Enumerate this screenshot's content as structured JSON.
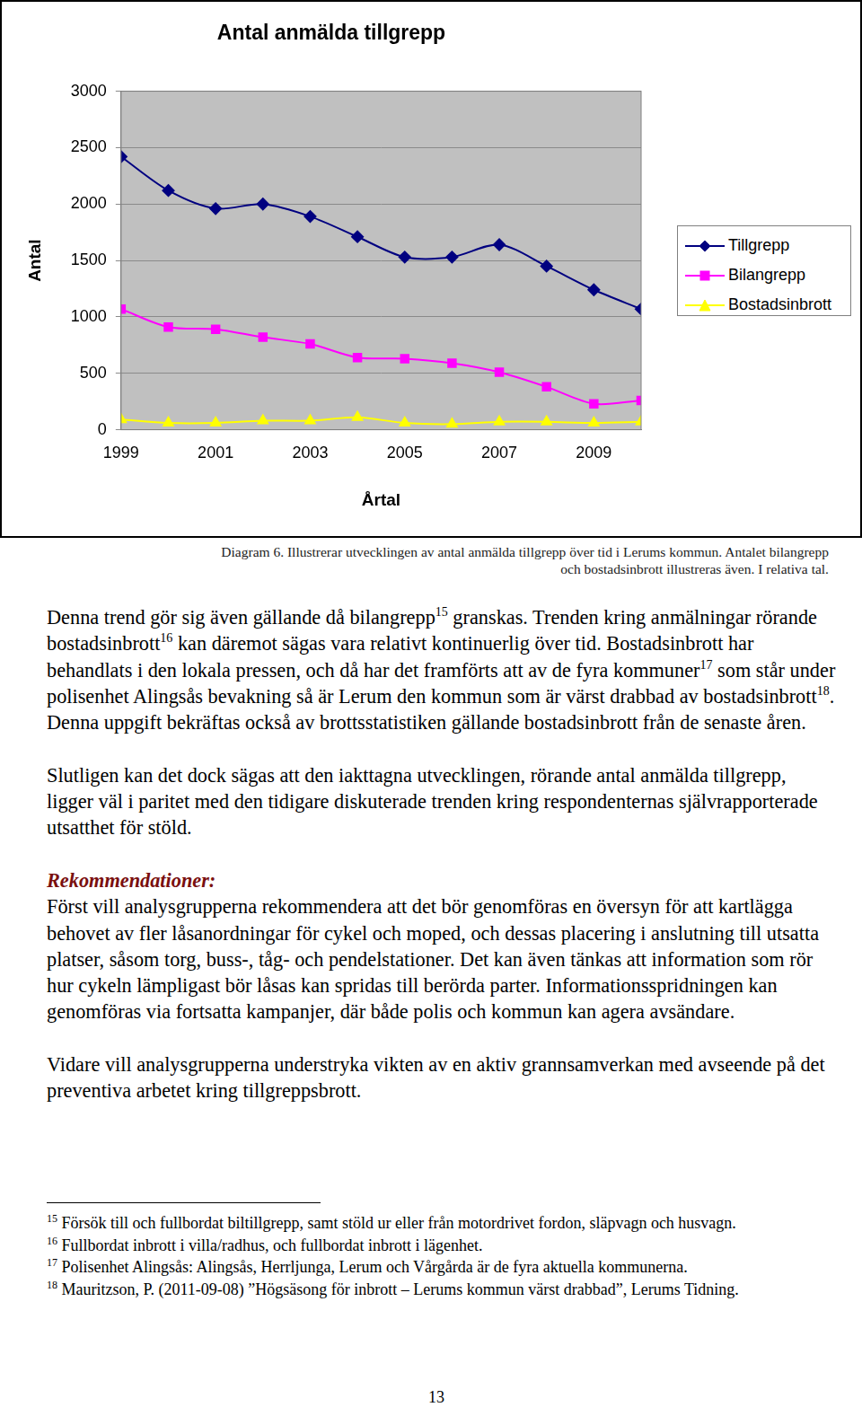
{
  "chart_data": {
    "type": "line",
    "title": "Antal anmälda tillgrepp",
    "x_label": "Årtal",
    "y_label": "Antal",
    "categories": [
      "1999",
      null,
      "2001",
      null,
      "2003",
      null,
      "2005",
      null,
      "2007",
      null,
      "2009",
      null
    ],
    "series": [
      {
        "name": "Tillgrepp",
        "color": "#000080",
        "marker": "diamond",
        "values": [
          2420,
          2120,
          1960,
          2000,
          1890,
          1710,
          1530,
          1530,
          1640,
          1450,
          1240,
          1070
        ]
      },
      {
        "name": "Bilangrepp",
        "color": "#ff00ff",
        "marker": "square",
        "values": [
          1070,
          910,
          890,
          820,
          760,
          640,
          630,
          590,
          510,
          380,
          230,
          260
        ]
      },
      {
        "name": "Bostadsinbrott",
        "color": "#ffff00",
        "marker": "triangle",
        "values": [
          90,
          60,
          60,
          80,
          80,
          110,
          60,
          50,
          70,
          70,
          60,
          70
        ]
      }
    ],
    "ylim": [
      0,
      3000
    ],
    "yticks": [
      0,
      500,
      1000,
      1500,
      2000,
      2500,
      3000
    ],
    "grid": true,
    "legend": "right"
  },
  "caption": "Diagram 6. Illustrerar utvecklingen av antal anmälda tillgrepp över tid i Lerums kommun. Antalet bilangrepp och bostadsinbrott illustreras även. I relativa tal.",
  "body": [
    {
      "paragraph": [
        {
          "text": "Denna trend gör sig även gällande då bilangrepp"
        },
        {
          "sup": "15"
        },
        {
          "text": " granskas. Trenden kring anmälningar rörande bostadsinbrott"
        },
        {
          "sup": "16"
        },
        {
          "text": " kan däremot sägas vara relativt kontinuerlig över tid. Bostadsinbrott har behandlats i den lokala pressen, och då har det framförts att av de fyra kommuner"
        },
        {
          "sup": "17"
        },
        {
          "text": " som står under polisenhet Alingsås bevakning så är Lerum den kommun som är värst drabbad av bostadsinbrott"
        },
        {
          "sup": "18"
        },
        {
          "text": ". Denna uppgift bekräftas också av brottsstatistiken gällande bostadsinbrott från de senaste åren."
        }
      ]
    },
    {
      "paragraph": [
        {
          "text": "Slutligen kan det dock sägas att den iakttagna utvecklingen, rörande antal anmälda tillgrepp, ligger väl i paritet med den tidigare diskuterade trenden kring respondenternas självrapporterade utsatthet för stöld."
        }
      ]
    },
    {
      "heading": "Rekommendationer:"
    },
    {
      "paragraph": [
        {
          "text": "Först vill analysgrupperna rekommendera att det bör genomföras en översyn för att kartlägga behovet av fler låsanordningar för cykel och moped,  och dessas placering i anslutning till utsatta platser, såsom torg, buss-, tåg- och pendelstationer. Det kan även tänkas att information som rör hur cykeln lämpligast bör låsas kan spridas till berörda parter. Informationsspridningen kan genomföras via fortsatta kampanjer, där både polis och kommun kan agera avsändare."
        }
      ]
    },
    {
      "paragraph": [
        {
          "text": "Vidare vill analysgrupperna understryka vikten av en aktiv grannsamverkan med avseende på det preventiva arbetet kring tillgreppsbrott."
        }
      ]
    }
  ],
  "footnotes": [
    {
      "number": "15",
      "text": "Försök till och fullbordat biltillgrepp, samt stöld ur eller från motordrivet fordon, släpvagn och husvagn."
    },
    {
      "number": "16",
      "text": "Fullbordat inbrott i villa/radhus, och fullbordat inbrott i lägenhet."
    },
    {
      "number": "17",
      "text": "Polisenhet Alingsås: Alingsås, Herrljunga, Lerum och Vårgårda är de fyra aktuella kommunerna."
    },
    {
      "number": "18",
      "text": "Mauritzson, P. (2011-09-08) ”Högsäsong för inbrott – Lerums kommun värst drabbad”, Lerums Tidning."
    }
  ],
  "page_number": "13"
}
